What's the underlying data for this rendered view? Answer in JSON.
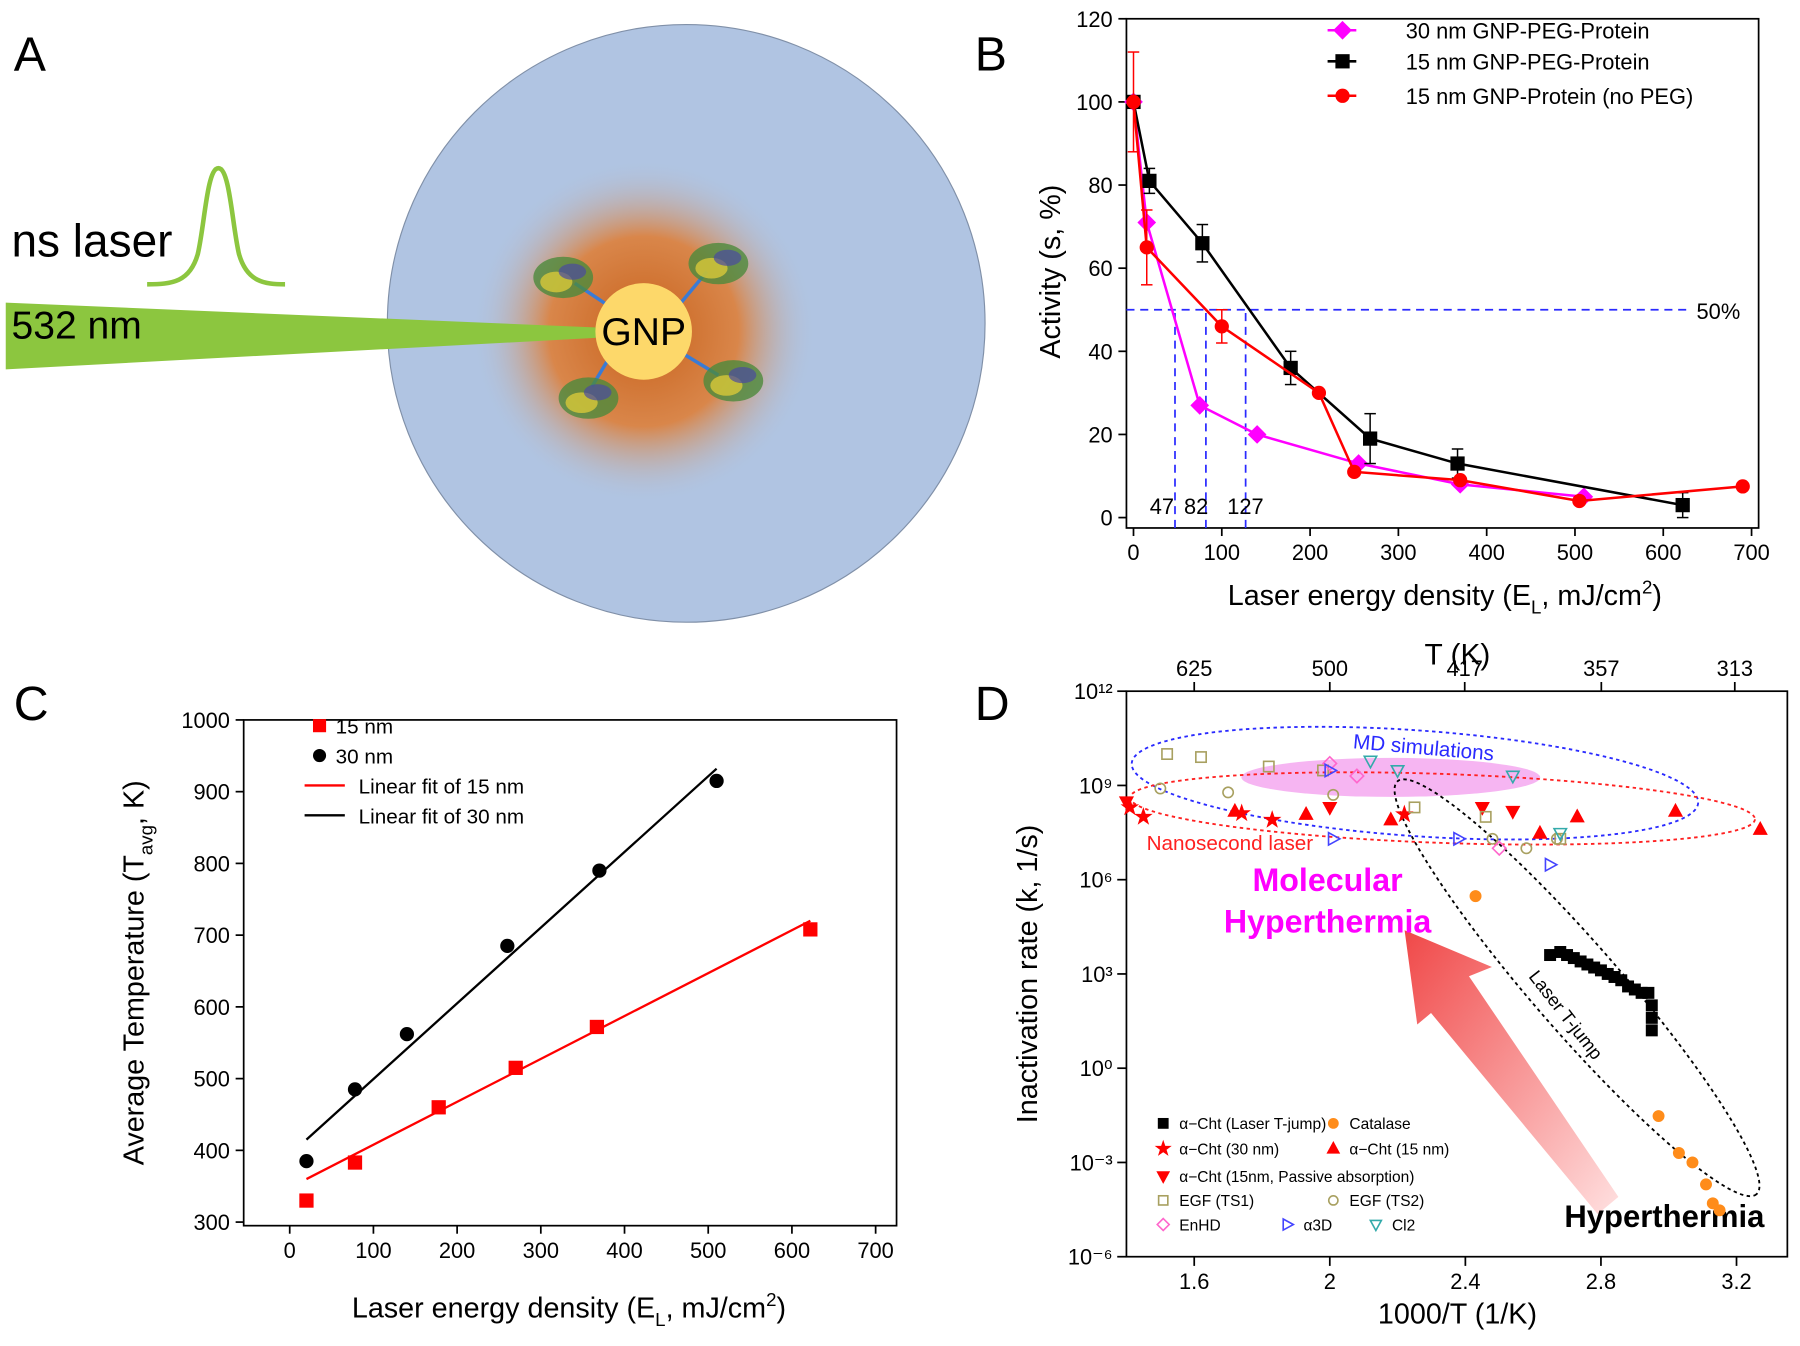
{
  "panel_labels": [
    "A",
    "B",
    "C",
    "D"
  ],
  "diagram": {
    "laser_label": "ns laser",
    "wavelength": "532 nm",
    "particle": "GNP"
  },
  "chart_data": [
    {
      "type": "line",
      "x_label": [
        "Laser energy density (E",
        "L",
        ", mJ/cm",
        "2",
        ")"
      ],
      "y_label": "Activity (s, %)",
      "xlim": [
        -8,
        708
      ],
      "ylim": [
        -2.5,
        120
      ],
      "xticks": [
        0,
        100,
        200,
        300,
        400,
        500,
        600,
        700
      ],
      "yticks": [
        0,
        20,
        40,
        60,
        80,
        100,
        120
      ],
      "legend": "upper right",
      "series": [
        {
          "name": "30 nm GNP-PEG-Protein",
          "color": "#ff00ff",
          "marker": "diamond",
          "x": [
            0,
            15,
            75,
            140,
            255,
            370,
            510
          ],
          "values": [
            100,
            71,
            27,
            20,
            13,
            8,
            5
          ]
        },
        {
          "name": "15 nm GNP-PEG-Protein",
          "color": "#000000",
          "marker": "square",
          "x": [
            0,
            18,
            78,
            178,
            268,
            367,
            622
          ],
          "values": [
            100,
            81,
            66,
            36,
            19,
            13,
            3
          ],
          "errors": [
            null,
            3,
            4.5,
            4,
            6,
            3.5,
            3
          ]
        },
        {
          "name": "15 nm GNP-Protein (no PEG)",
          "color": "#ff0000",
          "marker": "circle",
          "x": [
            0,
            15,
            100,
            210,
            250,
            370,
            505,
            690
          ],
          "values": [
            100,
            65,
            46,
            30,
            11,
            9,
            4,
            7.5
          ],
          "errors": [
            12,
            9,
            4,
            null,
            null,
            null,
            null,
            null
          ]
        }
      ],
      "hline": {
        "value": 50,
        "label": "50%"
      },
      "vlines": [
        47,
        82,
        127
      ]
    },
    {
      "type": "scatter",
      "x_label": [
        "Laser energy density (E",
        "L",
        ", mJ/cm",
        "2",
        ")"
      ],
      "y_label": [
        "Average Temperature (T",
        "avg",
        ", K)"
      ],
      "xlim": [
        -55,
        725
      ],
      "ylim": [
        295,
        1000
      ],
      "xticks": [
        0,
        100,
        200,
        300,
        400,
        500,
        600,
        700
      ],
      "yticks": [
        300,
        400,
        500,
        600,
        700,
        800,
        900,
        1000
      ],
      "legend": "upper left",
      "series": [
        {
          "name": "15 nm",
          "color": "#ff0000",
          "marker": "square",
          "x": [
            20,
            78,
            178,
            270,
            367,
            622
          ],
          "values": [
            330,
            383,
            460,
            515,
            572,
            708
          ]
        },
        {
          "name": "30 nm",
          "color": "#000000",
          "marker": "circle",
          "x": [
            20,
            78,
            140,
            260,
            370,
            510
          ],
          "values": [
            385,
            485,
            562,
            685,
            790,
            915
          ]
        }
      ],
      "fits": [
        {
          "name": "Linear fit of 15 nm",
          "color": "#ff0000",
          "x": [
            20,
            622
          ],
          "values": [
            360,
            720
          ]
        },
        {
          "name": "Linear fit of 30 nm",
          "color": "#000000",
          "x": [
            20,
            510
          ],
          "values": [
            415,
            932
          ]
        }
      ]
    },
    {
      "type": "scatter",
      "log_y": true,
      "x_label": "1000/T (1/K)",
      "y_label": "Inactivation rate (k, 1/s)",
      "x2_label": "T (K)",
      "xlim": [
        1.4,
        3.35
      ],
      "ylim": [
        1e-06,
        1000000000000.0
      ],
      "xticks": [
        1.6,
        2.0,
        2.4,
        2.8,
        3.2
      ],
      "x2ticks": [
        625,
        500,
        417,
        357,
        313
      ],
      "yticks": [
        {
          "value": 1e-06,
          "label": "10⁻⁶"
        },
        {
          "value": 0.001,
          "label": "10⁻³"
        },
        {
          "value": 1,
          "label": "10⁰"
        },
        {
          "value": 1000,
          "label": "10³"
        },
        {
          "value": 1000000.0,
          "label": "10⁶"
        },
        {
          "value": 1000000000.0,
          "label": "10⁹"
        },
        {
          "value": 1000000000000.0,
          "label": "10¹²"
        }
      ],
      "legend": "lower left",
      "series": [
        {
          "name": "α−Cht (Laser T-jump)",
          "color": "#000000",
          "marker": "square",
          "filled": true,
          "x": [
            2.65,
            2.68,
            2.7,
            2.72,
            2.74,
            2.76,
            2.78,
            2.8,
            2.82,
            2.84,
            2.86,
            2.88,
            2.9,
            2.92,
            2.94,
            2.95,
            2.95,
            2.95
          ],
          "values": [
            4000,
            5000,
            4000,
            3200,
            2500,
            2000,
            1600,
            1300,
            1000,
            800,
            630,
            400,
            320,
            250,
            250,
            100,
            40,
            16
          ]
        },
        {
          "name": "Catalase",
          "color": "#ff8c1a",
          "marker": "circle",
          "filled": true,
          "x": [
            2.43,
            2.97,
            3.03,
            3.07,
            3.11,
            3.13,
            3.15
          ],
          "values": [
            300000,
            0.03,
            0.002,
            0.001,
            0.0002,
            5e-05,
            3e-05
          ]
        },
        {
          "name": "α−Cht (30 nm)",
          "color": "#ff0000",
          "marker": "star",
          "filled": true,
          "x": [
            1.41,
            1.45,
            1.74,
            1.83,
            2.22
          ],
          "values": [
            200000000,
            100000000,
            130000000,
            80000000,
            120000000
          ]
        },
        {
          "name": "α−Cht (15 nm)",
          "color": "#ff0000",
          "marker": "triangle-up",
          "filled": true,
          "x": [
            1.72,
            1.93,
            2.18,
            2.62,
            2.73,
            3.02,
            3.27
          ],
          "values": [
            150000000,
            120000000,
            80000000,
            30000000,
            100000000,
            150000000,
            40000000
          ]
        },
        {
          "name": "α−Cht (15nm, Passive absorption)",
          "color": "#ff0000",
          "marker": "triangle-down",
          "filled": true,
          "x": [
            1.4,
            2.0,
            2.45,
            2.54
          ],
          "values": [
            300000000,
            200000000,
            200000000,
            150000000
          ]
        },
        {
          "name": "EGF (TS1)",
          "color": "#a8a060",
          "marker": "square",
          "filled": false,
          "x": [
            1.52,
            1.62,
            1.82,
            1.98,
            2.25,
            2.46,
            2.68
          ],
          "values": [
            10000000000,
            8000000000,
            4000000000,
            3000000000,
            200000000,
            100000000,
            20000000
          ]
        },
        {
          "name": "EGF (TS2)",
          "color": "#a8a060",
          "marker": "circle",
          "filled": false,
          "x": [
            1.5,
            1.7,
            2.01,
            2.48,
            2.58,
            2.67
          ],
          "values": [
            800000000,
            600000000,
            500000000,
            20000000,
            10000000,
            20000000
          ]
        },
        {
          "name": "EnHD",
          "color": "#ff66cc",
          "marker": "diamond",
          "filled": false,
          "x": [
            2.0,
            2.08,
            2.5
          ],
          "values": [
            5000000000,
            2000000000,
            10000000
          ]
        },
        {
          "name": "α3D",
          "color": "#4444ff",
          "marker": "triangle-right",
          "filled": false,
          "x": [
            2.0,
            2.01,
            2.38,
            2.65
          ],
          "values": [
            3000000000,
            20000000,
            20000000,
            3000000
          ]
        },
        {
          "name": "Cl2",
          "color": "#33aaaa",
          "marker": "triangle-down",
          "filled": false,
          "x": [
            2.2,
            2.12,
            2.54,
            2.68
          ],
          "values": [
            3000000000,
            6000000000,
            2000000000,
            30000000
          ]
        }
      ],
      "annotations": [
        "MD simulations",
        "Nanosecond laser",
        "Molecular",
        "Hyperthermia",
        "Laser T-jump",
        "Hyperthermia"
      ]
    }
  ]
}
